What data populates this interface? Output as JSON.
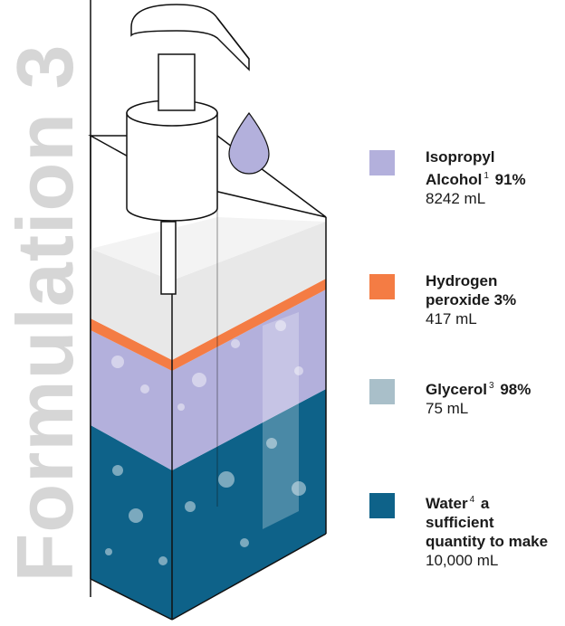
{
  "title": "Formulation 3",
  "ingredients": [
    {
      "name": "Isopropyl Alcohol",
      "note": "1",
      "strength": "91%",
      "amount": "8242 mL",
      "color": "#b3b0dc"
    },
    {
      "name": "Hydrogen peroxide",
      "strength": "3%",
      "amount": "417 mL",
      "color": "#f47c44"
    },
    {
      "name": "Glycerol",
      "note": "3",
      "strength": "98%",
      "amount": "75 mL",
      "color": "#a9bfc9"
    },
    {
      "name": "Water",
      "note": "4",
      "strength": "a sufficient quantity to make",
      "amount": "10,000 mL",
      "color": "#0e6289"
    }
  ]
}
